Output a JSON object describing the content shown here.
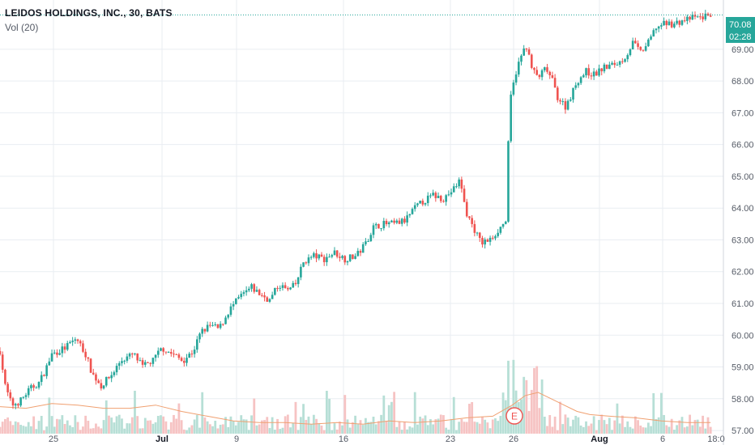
{
  "header": {
    "title": "LEIDOS HOLDINGS, INC., 30, BATS",
    "volume_indicator": "Vol (20)"
  },
  "price_badge": {
    "price": "70.08",
    "countdown": "02:28"
  },
  "earnings_marker": {
    "label": "E"
  },
  "colors": {
    "up": "#26a69a",
    "down": "#ef5350",
    "volume_up": "#b7dfd6",
    "volume_down": "#f6c3c3",
    "volume_ma": "#f0a070",
    "grid": "#e9edf2",
    "axis_text": "#555b66",
    "last_price_line": "#26a69a"
  },
  "chart_data": {
    "type": "candlestick",
    "title": "LEIDOS HOLDINGS, INC., 30, BATS",
    "interval": "30 minutes",
    "ylim": [
      56.9,
      70.55
    ],
    "y_ticks": [
      "57.00",
      "58.00",
      "59.00",
      "60.00",
      "61.00",
      "62.00",
      "63.00",
      "64.00",
      "65.00",
      "66.00",
      "67.00",
      "68.00",
      "69.00"
    ],
    "x_ticks": [
      "25",
      "Jul",
      "9",
      "16",
      "23",
      "26",
      "Aug",
      "6",
      "18:0"
    ],
    "grid": true,
    "last_price": 70.08,
    "price_path": [
      [
        0,
        59.5
      ],
      [
        0.4,
        58.4
      ],
      [
        0.9,
        57.8
      ],
      [
        1.5,
        57.9
      ],
      [
        2.3,
        58.3
      ],
      [
        3.0,
        58.5
      ],
      [
        3.5,
        58.9
      ],
      [
        4.0,
        59.4
      ],
      [
        5.0,
        59.6
      ],
      [
        5.9,
        59.9
      ],
      [
        6.6,
        59.4
      ],
      [
        7.1,
        58.8
      ],
      [
        7.8,
        58.4
      ],
      [
        8.7,
        58.8
      ],
      [
        9.3,
        59.2
      ],
      [
        10.3,
        59.4
      ],
      [
        11.0,
        59.0
      ],
      [
        11.8,
        59.2
      ],
      [
        12.5,
        59.6
      ],
      [
        13.3,
        59.4
      ],
      [
        14.1,
        59.2
      ],
      [
        14.9,
        59.5
      ],
      [
        15.5,
        60.1
      ],
      [
        16.2,
        60.3
      ],
      [
        16.9,
        60.2
      ],
      [
        17.7,
        60.8
      ],
      [
        18.5,
        61.2
      ],
      [
        19.4,
        61.5
      ],
      [
        20.0,
        61.3
      ],
      [
        20.8,
        61.1
      ],
      [
        21.5,
        61.6
      ],
      [
        22.2,
        61.4
      ],
      [
        22.8,
        61.6
      ],
      [
        23.4,
        62.3
      ],
      [
        24.2,
        62.5
      ],
      [
        25.0,
        62.4
      ],
      [
        25.8,
        62.6
      ],
      [
        26.6,
        62.4
      ],
      [
        27.5,
        62.5
      ],
      [
        28.2,
        62.9
      ],
      [
        28.8,
        63.4
      ],
      [
        29.6,
        63.5
      ],
      [
        30.4,
        63.5
      ],
      [
        31.2,
        63.6
      ],
      [
        32.0,
        64.0
      ],
      [
        32.6,
        64.2
      ],
      [
        33.4,
        64.4
      ],
      [
        34.2,
        64.3
      ],
      [
        35.0,
        64.6
      ],
      [
        35.5,
        64.9
      ],
      [
        35.9,
        63.9
      ],
      [
        36.5,
        63.4
      ],
      [
        37.1,
        62.9
      ],
      [
        37.8,
        63.0
      ],
      [
        38.6,
        63.4
      ],
      [
        39.0,
        63.6
      ],
      [
        39.2,
        66.0
      ],
      [
        39.4,
        67.5
      ],
      [
        39.8,
        68.3
      ],
      [
        40.3,
        68.9
      ],
      [
        40.6,
        69.1
      ],
      [
        41.0,
        68.4
      ],
      [
        41.5,
        68.1
      ],
      [
        42.1,
        68.4
      ],
      [
        42.6,
        68.0
      ],
      [
        43.0,
        67.5
      ],
      [
        43.6,
        67.2
      ],
      [
        44.1,
        67.6
      ],
      [
        44.5,
        68.0
      ],
      [
        45.2,
        68.3
      ],
      [
        45.8,
        68.2
      ],
      [
        46.5,
        68.4
      ],
      [
        47.2,
        68.5
      ],
      [
        47.8,
        68.6
      ],
      [
        48.3,
        68.8
      ],
      [
        48.8,
        69.2
      ],
      [
        49.4,
        68.9
      ],
      [
        50.0,
        69.2
      ],
      [
        50.6,
        69.7
      ],
      [
        51.3,
        69.8
      ],
      [
        52.0,
        69.8
      ],
      [
        52.7,
        69.9
      ],
      [
        53.5,
        70.0
      ],
      [
        54.1,
        70.0
      ],
      [
        54.8,
        70.1
      ]
    ],
    "volume_ma": [
      [
        0,
        57.75
      ],
      [
        2,
        57.7
      ],
      [
        4,
        57.85
      ],
      [
        6,
        57.8
      ],
      [
        8,
        57.7
      ],
      [
        10,
        57.7
      ],
      [
        12,
        57.8
      ],
      [
        14,
        57.6
      ],
      [
        16,
        57.45
      ],
      [
        18,
        57.3
      ],
      [
        20,
        57.25
      ],
      [
        22,
        57.25
      ],
      [
        24,
        57.2
      ],
      [
        26,
        57.25
      ],
      [
        28,
        57.2
      ],
      [
        30,
        57.3
      ],
      [
        32,
        57.25
      ],
      [
        34,
        57.3
      ],
      [
        36,
        57.4
      ],
      [
        38,
        57.45
      ],
      [
        39.5,
        57.8
      ],
      [
        40.5,
        58.1
      ],
      [
        41.5,
        58.2
      ],
      [
        42.5,
        58.0
      ],
      [
        43.5,
        57.8
      ],
      [
        44.5,
        57.6
      ],
      [
        45.5,
        57.5
      ],
      [
        47,
        57.45
      ],
      [
        49,
        57.4
      ],
      [
        51,
        57.3
      ],
      [
        53,
        57.25
      ],
      [
        54.8,
        57.25
      ]
    ]
  }
}
